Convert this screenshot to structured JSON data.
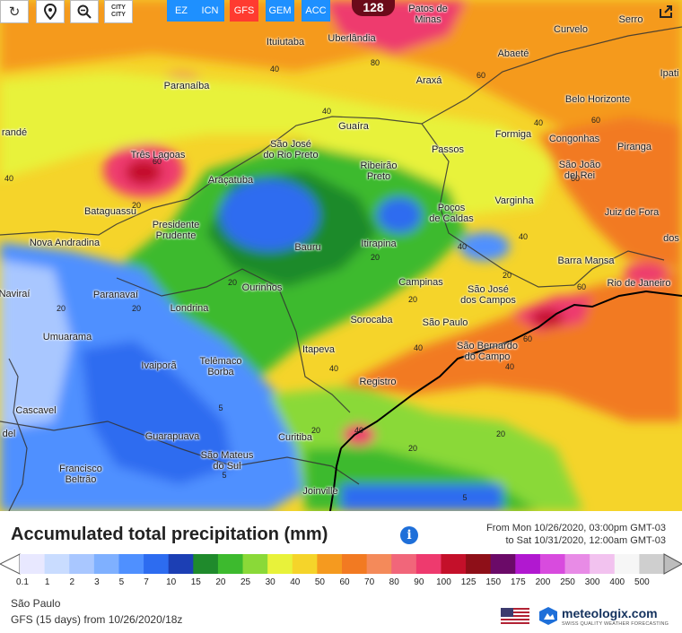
{
  "toolbar": {
    "buttons": [
      {
        "name": "refresh-icon"
      },
      {
        "name": "location-pin-icon"
      },
      {
        "name": "zoom-icon"
      },
      {
        "name": "city-toggle",
        "label": "CITY\nCITY"
      }
    ],
    "models": [
      {
        "label": "EZ",
        "color": "#1e90ff",
        "active": false
      },
      {
        "label": "ICN",
        "color": "#1e90ff",
        "active": false
      },
      {
        "label": "GFS",
        "color": "#ff3b30",
        "active": true
      },
      {
        "label": "GEM",
        "color": "#1e90ff",
        "active": false
      },
      {
        "label": "ACC",
        "color": "#1e90ff",
        "active": false
      }
    ],
    "share_icon": "share-icon"
  },
  "map": {
    "max_marker": "128",
    "cities": [
      {
        "name": "Patos de\nMinas",
        "id": "patos-de-minas"
      },
      {
        "name": "Serro",
        "id": "serro"
      },
      {
        "name": "Ituiutaba",
        "id": "ituiutaba"
      },
      {
        "name": "Uberlândia",
        "id": "uberlandia"
      },
      {
        "name": "Curvelo",
        "id": "curvelo"
      },
      {
        "name": "Abaeté",
        "id": "abaete"
      },
      {
        "name": "Ipati",
        "id": "ipati"
      },
      {
        "name": "Paranaíba",
        "id": "paranaiba"
      },
      {
        "name": "Araxá",
        "id": "araxa"
      },
      {
        "name": "Belo Horizonte",
        "id": "belo-horizonte"
      },
      {
        "name": "randé",
        "id": "rande"
      },
      {
        "name": "Guaíra",
        "id": "guaira"
      },
      {
        "name": "Formiga",
        "id": "formiga"
      },
      {
        "name": "Congonhas",
        "id": "congonhas"
      },
      {
        "name": "São José\ndo Rio Preto",
        "id": "sao-jose-do-rio-preto"
      },
      {
        "name": "Passos",
        "id": "passos"
      },
      {
        "name": "Piranga",
        "id": "piranga"
      },
      {
        "name": "Três Lagoas",
        "id": "tres-lagoas"
      },
      {
        "name": "Ribeirão\nPreto",
        "id": "ribeirao-preto"
      },
      {
        "name": "São João\ndel Rei",
        "id": "sao-joao-del-rei"
      },
      {
        "name": "Araçatuba",
        "id": "aracatuba"
      },
      {
        "name": "Varginha",
        "id": "varginha"
      },
      {
        "name": "Bataguassu",
        "id": "bataguassu"
      },
      {
        "name": "Poços\nde Caldas",
        "id": "pocos-de-caldas"
      },
      {
        "name": "Juiz de Fora",
        "id": "juiz-de-fora"
      },
      {
        "name": "Presidente\nPrudente",
        "id": "presidente-prudente"
      },
      {
        "name": "Nova Andradina",
        "id": "nova-andradina"
      },
      {
        "name": "Bauru",
        "id": "bauru"
      },
      {
        "name": "Itirapina",
        "id": "itirapina"
      },
      {
        "name": "dos",
        "id": "dos"
      },
      {
        "name": "Barra Mansa",
        "id": "barra-mansa"
      },
      {
        "name": "Naviraí",
        "id": "navirai"
      },
      {
        "name": "Campinas",
        "id": "campinas"
      },
      {
        "name": "Rio de Janeiro",
        "id": "rio-de-janeiro"
      },
      {
        "name": "Paranavaí",
        "id": "paranavai"
      },
      {
        "name": "Ourinhos",
        "id": "ourinhos"
      },
      {
        "name": "São José\ndos Campos",
        "id": "sao-jose-dos-campos"
      },
      {
        "name": "Londrina",
        "id": "londrina"
      },
      {
        "name": "Sorocaba",
        "id": "sorocaba"
      },
      {
        "name": "São Paulo",
        "id": "sao-paulo"
      },
      {
        "name": "Umuarama",
        "id": "umuarama"
      },
      {
        "name": "São Bernardo\ndo Campo",
        "id": "sao-bernardo-do-campo"
      },
      {
        "name": "Itapeva",
        "id": "itapeva"
      },
      {
        "name": "Ivaiporã",
        "id": "ivaipora"
      },
      {
        "name": "Telêmaco\nBorba",
        "id": "telemaco-borba"
      },
      {
        "name": "Registro",
        "id": "registro"
      },
      {
        "name": "Cascavel",
        "id": "cascavel"
      },
      {
        "name": "Guarapuava",
        "id": "guarapuava"
      },
      {
        "name": "Curitiba",
        "id": "curitiba"
      },
      {
        "name": "del",
        "id": "del"
      },
      {
        "name": "São Mateus\ndo Sul",
        "id": "sao-mateus-do-sul"
      },
      {
        "name": "Francisco\nBeltrão",
        "id": "francisco-beltrao"
      },
      {
        "name": "Joinville",
        "id": "joinville"
      }
    ],
    "contour_labels": [
      "80",
      "40",
      "60",
      "40",
      "60",
      "40",
      "60",
      "60",
      "40",
      "20",
      "40",
      "40",
      "20",
      "20",
      "20",
      "20",
      "20",
      "60",
      "20",
      "40",
      "40",
      "60",
      "40",
      "40",
      "20",
      "20",
      "5",
      "5",
      "20",
      "5"
    ]
  },
  "legend": {
    "title": "Accumulated total precipitation (mm)",
    "period_from": "From Mon 10/26/2020, 03:00pm GMT-03",
    "period_to": "to Sat 10/31/2020, 12:00am GMT-03",
    "ticks": [
      "0.1",
      "1",
      "2",
      "3",
      "5",
      "7",
      "10",
      "15",
      "20",
      "25",
      "30",
      "40",
      "50",
      "60",
      "70",
      "80",
      "90",
      "100",
      "125",
      "150",
      "175",
      "200",
      "250",
      "300",
      "400",
      "500"
    ],
    "colors": [
      "#e8e8ff",
      "#c9dcff",
      "#a9c7ff",
      "#7fb0ff",
      "#4f90ff",
      "#2d6cf0",
      "#1c3fb4",
      "#1f8a2c",
      "#3dba2e",
      "#8ad938",
      "#e8f23a",
      "#f5d42a",
      "#f59a1f",
      "#f27a22",
      "#f48a5a",
      "#f1667a",
      "#ee3a6e",
      "#c4102a",
      "#8e0f18",
      "#6b0a68",
      "#b118d0",
      "#d84bde",
      "#e88be6",
      "#f2c2ef",
      "#f6f6f6",
      "#cfcfcf"
    ]
  },
  "footer": {
    "location": "São Paulo",
    "model_run": "GFS (15 days) from 10/26/2020/18z",
    "brand": "meteologix.com",
    "brand_tagline": "SWISS QUALITY WEATHER FORECASTING"
  }
}
